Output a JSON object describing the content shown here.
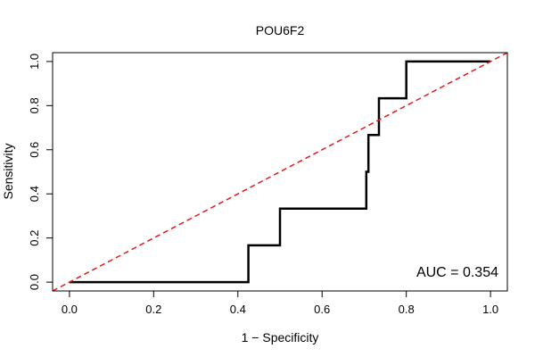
{
  "chart_data": {
    "type": "line",
    "title": "POU6F2",
    "xlabel": "1 − Specificity",
    "ylabel": "Sensitivity",
    "xlim": [
      -0.04,
      1.04
    ],
    "ylim": [
      -0.04,
      1.04
    ],
    "x_ticks": [
      0.0,
      0.2,
      0.4,
      0.6,
      0.8,
      1.0
    ],
    "x_tick_labels": [
      "0.0",
      "0.2",
      "0.4",
      "0.6",
      "0.8",
      "1.0"
    ],
    "y_ticks": [
      0.0,
      0.2,
      0.4,
      0.6,
      0.8,
      1.0
    ],
    "y_tick_labels": [
      "0.0",
      "0.2",
      "0.4",
      "0.6",
      "0.8",
      "1.0"
    ],
    "grid": false,
    "annotation": "AUC = 0.354",
    "series": [
      {
        "color": "#000000",
        "style": "solid",
        "x": [
          0.0,
          0.425,
          0.425,
          0.5,
          0.5,
          0.705,
          0.705,
          0.71,
          0.71,
          0.735,
          0.735,
          0.8,
          0.8,
          1.0
        ],
        "y": [
          0.0,
          0.0,
          0.167,
          0.167,
          0.333,
          0.333,
          0.5,
          0.5,
          0.667,
          0.667,
          0.833,
          0.833,
          1.0,
          1.0
        ]
      },
      {
        "color": "#e41a1c",
        "style": "dashed",
        "x": [
          -0.04,
          1.04
        ],
        "y": [
          -0.04,
          1.04
        ]
      }
    ]
  }
}
